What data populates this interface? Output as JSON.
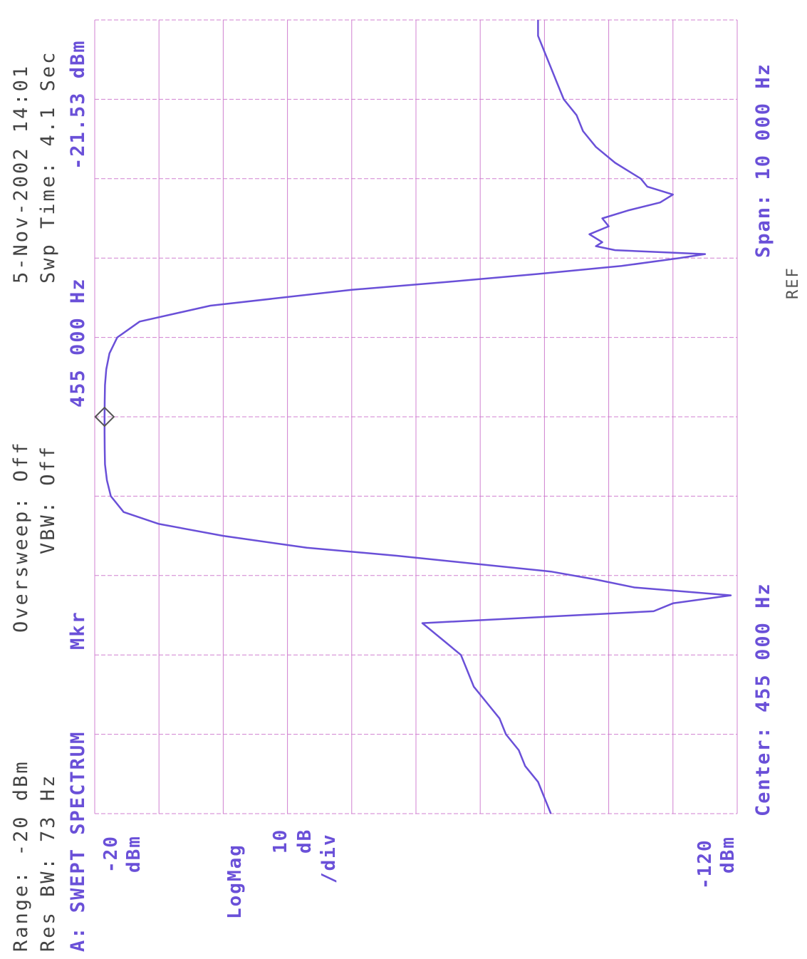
{
  "header": {
    "range": "Range: -20 dBm",
    "res_bw": "Res BW: 73 Hz",
    "mode": "A: SWEPT SPECTRUM",
    "mkr_label": "Mkr",
    "oversweep": "Oversweep:  Off",
    "vbw": "VBW: Off",
    "marker_freq": "455 000 Hz",
    "date_time": "5-Nov-2002   14:01",
    "swp_time": "Swp Time:  4.1 Sec",
    "marker_level": "-21.53 dBm"
  },
  "footer": {
    "center": "Center:  455 000 Hz",
    "span": "Span:  10 000 Hz",
    "ref": "REF"
  },
  "left_annotations": {
    "top_value": "-20",
    "top_unit": "dBm",
    "scale_type": "LogMag",
    "scale_value": "10",
    "scale_unit": "dB",
    "scale_per": "/div",
    "bottom_value": "-120",
    "bottom_unit": "dBm"
  },
  "colors": {
    "trace": "#6a50d8",
    "grid": "#d080d0",
    "header_text": "#444444",
    "marker": "#555555"
  },
  "chart_data": {
    "type": "line",
    "title": "SWEPT SPECTRUM",
    "xlabel": "",
    "ylabel": "",
    "x_unit": "Hz",
    "y_unit": "dBm",
    "xlim": [
      450000,
      460000
    ],
    "ylim": [
      -120,
      -20
    ],
    "grid": true,
    "series": [
      {
        "x": [
          450000,
          450200,
          450400,
          450600,
          450800,
          451000,
          451200,
          451400,
          451600,
          451800,
          452000,
          452200,
          452400,
          452550,
          452650,
          452750,
          452850,
          452950,
          453050,
          453150,
          453250,
          453350,
          453500,
          453650,
          453800,
          454000,
          454200,
          454400,
          454600,
          454800,
          455000,
          455200,
          455400,
          455600,
          455800,
          456000,
          456200,
          456400,
          456600,
          456700,
          456800,
          456900,
          457000,
          457050,
          457100,
          457150,
          457200,
          457300,
          457400,
          457500,
          457600,
          457700,
          457800,
          457900,
          458000,
          458200,
          458400,
          458600,
          458800,
          459000,
          459200,
          459400,
          459600,
          459800,
          460000
        ],
        "y": [
          -91,
          -90,
          -89,
          -87,
          -86,
          -84,
          -83,
          -81,
          -79,
          -78,
          -77,
          -74,
          -71,
          -107,
          -110,
          -119,
          -104,
          -98,
          -91,
          -79,
          -67,
          -53,
          -40,
          -30,
          -24.5,
          -22.5,
          -21.9,
          -21.6,
          -21.55,
          -21.53,
          -21.53,
          -21.55,
          -21.6,
          -21.8,
          -22.3,
          -23.5,
          -27,
          -38,
          -60,
          -75,
          -89,
          -102,
          -111,
          -115,
          -101,
          -98,
          -99,
          -97,
          -100,
          -99,
          -103,
          -108,
          -110,
          -106,
          -105,
          -101,
          -98,
          -96,
          -95,
          -93,
          -92,
          -91,
          -90,
          -89,
          -89
        ]
      }
    ],
    "marker": {
      "x": 455000,
      "y": -21.53,
      "label": "Mkr"
    }
  }
}
